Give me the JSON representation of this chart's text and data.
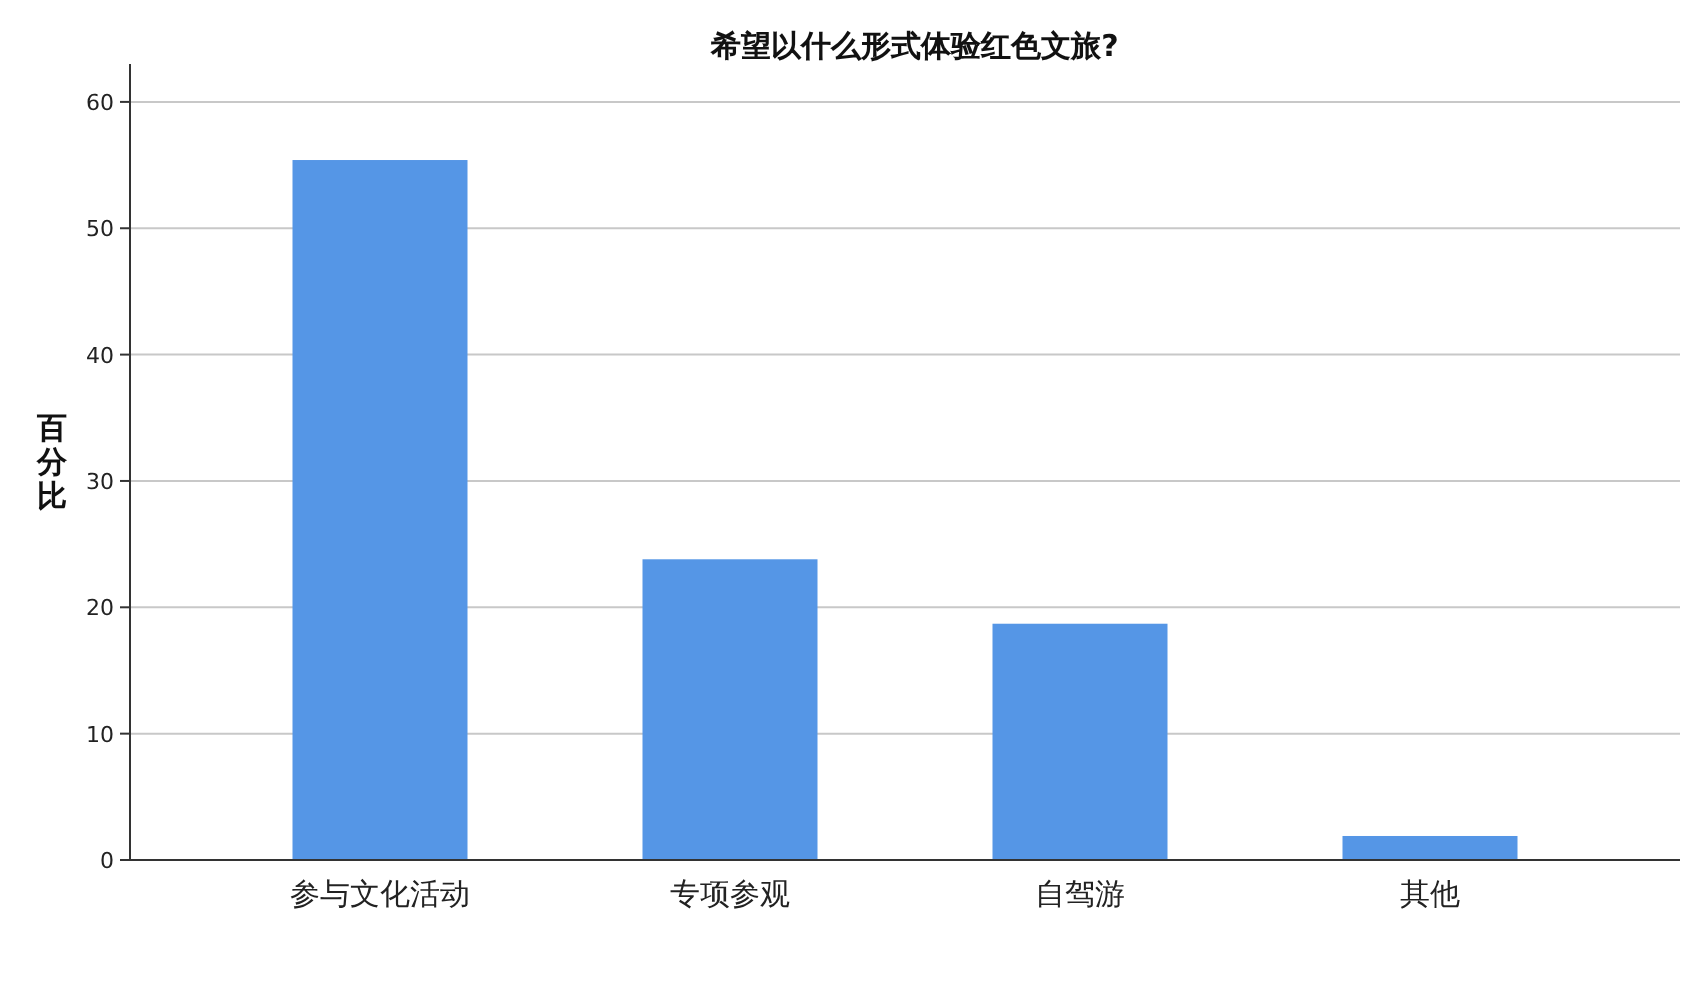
{
  "chart_data": {
    "type": "bar",
    "title": "希望以什么形式体验红色文旅?",
    "ylabel": "百分比",
    "categories": [
      "参与文化活动",
      "专项参观",
      "自驾游",
      "其他"
    ],
    "values": [
      55.4,
      23.8,
      18.7,
      1.9
    ],
    "color": "#5596e6",
    "ylim": [
      0,
      63
    ],
    "yticks": [
      0,
      10,
      20,
      30,
      40,
      50,
      60
    ],
    "grid": "y"
  }
}
